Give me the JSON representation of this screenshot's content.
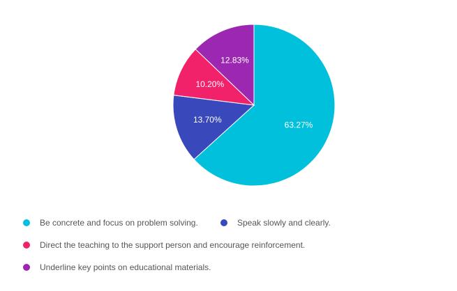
{
  "chart_data": {
    "type": "pie",
    "slices": [
      {
        "label": "Be concrete and focus on problem solving.",
        "value": 63.27,
        "value_label": "63.27%",
        "color": "#00c0db"
      },
      {
        "label": "Speak slowly and clearly.",
        "value": 13.7,
        "value_label": "13.70%",
        "color": "#3949bb"
      },
      {
        "label": "Direct the teaching to the support person and encourage reinforcement.",
        "value": 10.2,
        "value_label": "10.20%",
        "color": "#f2226a"
      },
      {
        "label": "Underline key points on educational materials.",
        "value": 12.83,
        "value_label": "12.83%",
        "color": "#9c27b0"
      }
    ],
    "start_angle": "12 o'clock",
    "direction": "clockwise",
    "legend_position": "bottom"
  }
}
